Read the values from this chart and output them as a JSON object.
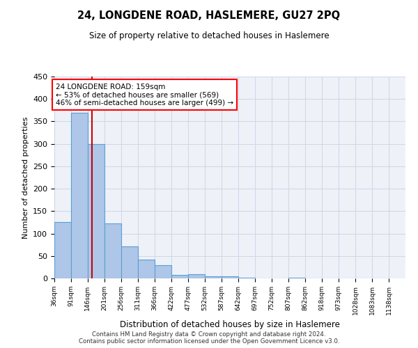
{
  "title": "24, LONGDENE ROAD, HASLEMERE, GU27 2PQ",
  "subtitle": "Size of property relative to detached houses in Haslemere",
  "xlabel": "Distribution of detached houses by size in Haslemere",
  "ylabel": "Number of detached properties",
  "bin_edges": [
    36,
    91,
    146,
    201,
    256,
    311,
    366,
    422,
    477,
    532,
    587,
    642,
    697,
    752,
    807,
    862,
    918,
    973,
    1028,
    1083,
    1138
  ],
  "bar_heights": [
    125,
    370,
    300,
    122,
    72,
    42,
    29,
    8,
    10,
    5,
    4,
    2,
    0,
    0,
    1,
    0,
    0,
    0,
    0,
    0
  ],
  "bar_color": "#aec6e8",
  "bar_edge_color": "#5a9fd4",
  "red_line_x": 159,
  "annotation_text": "24 LONGDENE ROAD: 159sqm\n← 53% of detached houses are smaller (569)\n46% of semi-detached houses are larger (499) →",
  "annotation_box_color": "white",
  "annotation_box_edge_color": "red",
  "red_line_color": "#cc0000",
  "grid_color": "#d0d8e8",
  "background_color": "#eef2f8",
  "footer_text": "Contains HM Land Registry data © Crown copyright and database right 2024.\nContains public sector information licensed under the Open Government Licence v3.0.",
  "ylim": [
    0,
    450
  ],
  "yticks": [
    0,
    50,
    100,
    150,
    200,
    250,
    300,
    350,
    400,
    450
  ],
  "xtick_labels": [
    "36sqm",
    "91sqm",
    "146sqm",
    "201sqm",
    "256sqm",
    "311sqm",
    "366sqm",
    "422sqm",
    "477sqm",
    "532sqm",
    "587sqm",
    "642sqm",
    "697sqm",
    "752sqm",
    "807sqm",
    "862sqm",
    "918sqm",
    "973sqm",
    "1028sqm",
    "1083sqm",
    "1138sqm"
  ]
}
